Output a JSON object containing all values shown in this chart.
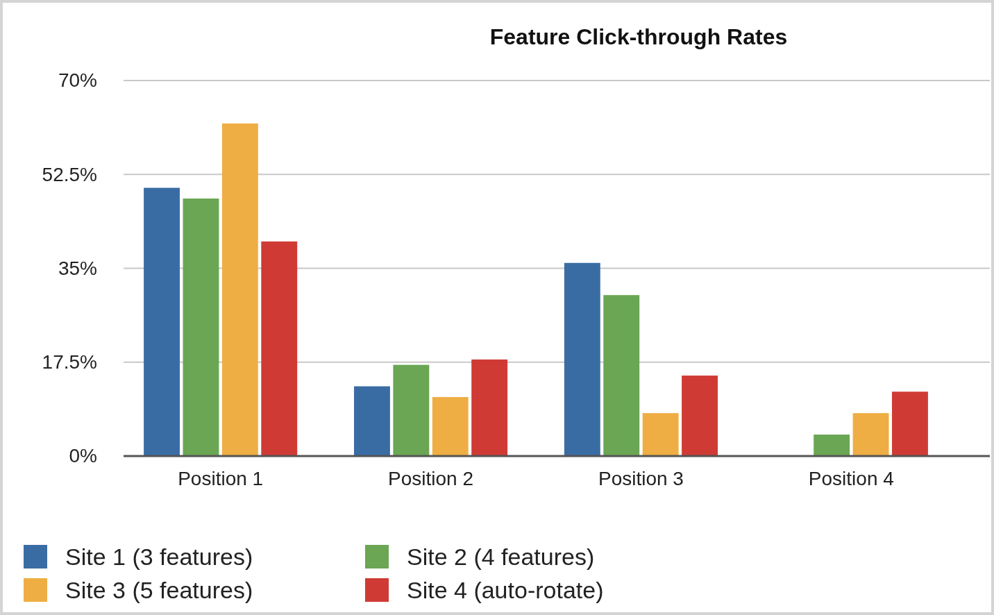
{
  "chart_data": {
    "type": "bar",
    "title": "Feature Click-through Rates",
    "categories": [
      "Position 1",
      "Position 2",
      "Position 3",
      "Position 4"
    ],
    "series": [
      {
        "name": "Site 1 (3 features)",
        "color": "#3a6ca4",
        "values": [
          50,
          13,
          36,
          null
        ]
      },
      {
        "name": "Site 2 (4 features)",
        "color": "#6aa653",
        "values": [
          48,
          17,
          30,
          4
        ]
      },
      {
        "name": "Site 3 (5 features)",
        "color": "#efae43",
        "values": [
          62,
          11,
          8,
          8
        ]
      },
      {
        "name": "Site 4 (auto-rotate)",
        "color": "#cf3b34",
        "values": [
          40,
          18,
          15,
          12
        ]
      }
    ],
    "ylim": [
      0,
      70
    ],
    "yticks": [
      {
        "value": 0,
        "label": "0%"
      },
      {
        "value": 17.5,
        "label": "17.5%"
      },
      {
        "value": 35,
        "label": "35%"
      },
      {
        "value": 52.5,
        "label": "52.5%"
      },
      {
        "value": 70,
        "label": "70%"
      }
    ],
    "grid": "y",
    "legend": "bottom"
  }
}
